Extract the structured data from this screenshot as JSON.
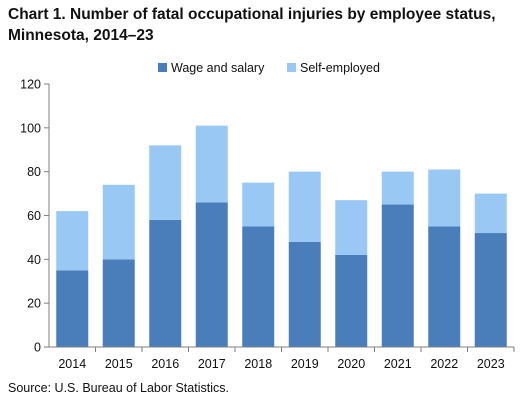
{
  "title_line1": "Chart 1. Number of fatal occupational injuries by employee status,",
  "title_line2": "Minnesota, 2014–23",
  "source": "Source: U.S. Bureau  of Labor Statistics.",
  "chart_data": {
    "type": "bar",
    "stacked": true,
    "categories": [
      "2014",
      "2015",
      "2016",
      "2017",
      "2018",
      "2019",
      "2020",
      "2021",
      "2022",
      "2023"
    ],
    "series": [
      {
        "name": "Wage and salary",
        "color": "#4a7ebb",
        "values": [
          35,
          40,
          58,
          66,
          55,
          48,
          42,
          65,
          55,
          52
        ]
      },
      {
        "name": "Self-employed",
        "color": "#99c8f5",
        "values": [
          27,
          34,
          34,
          35,
          20,
          32,
          25,
          15,
          26,
          18
        ]
      }
    ],
    "ylim": [
      0,
      120
    ],
    "yticks": [
      0,
      20,
      40,
      60,
      80,
      100,
      120
    ],
    "grid": false,
    "legend_position": "top"
  }
}
